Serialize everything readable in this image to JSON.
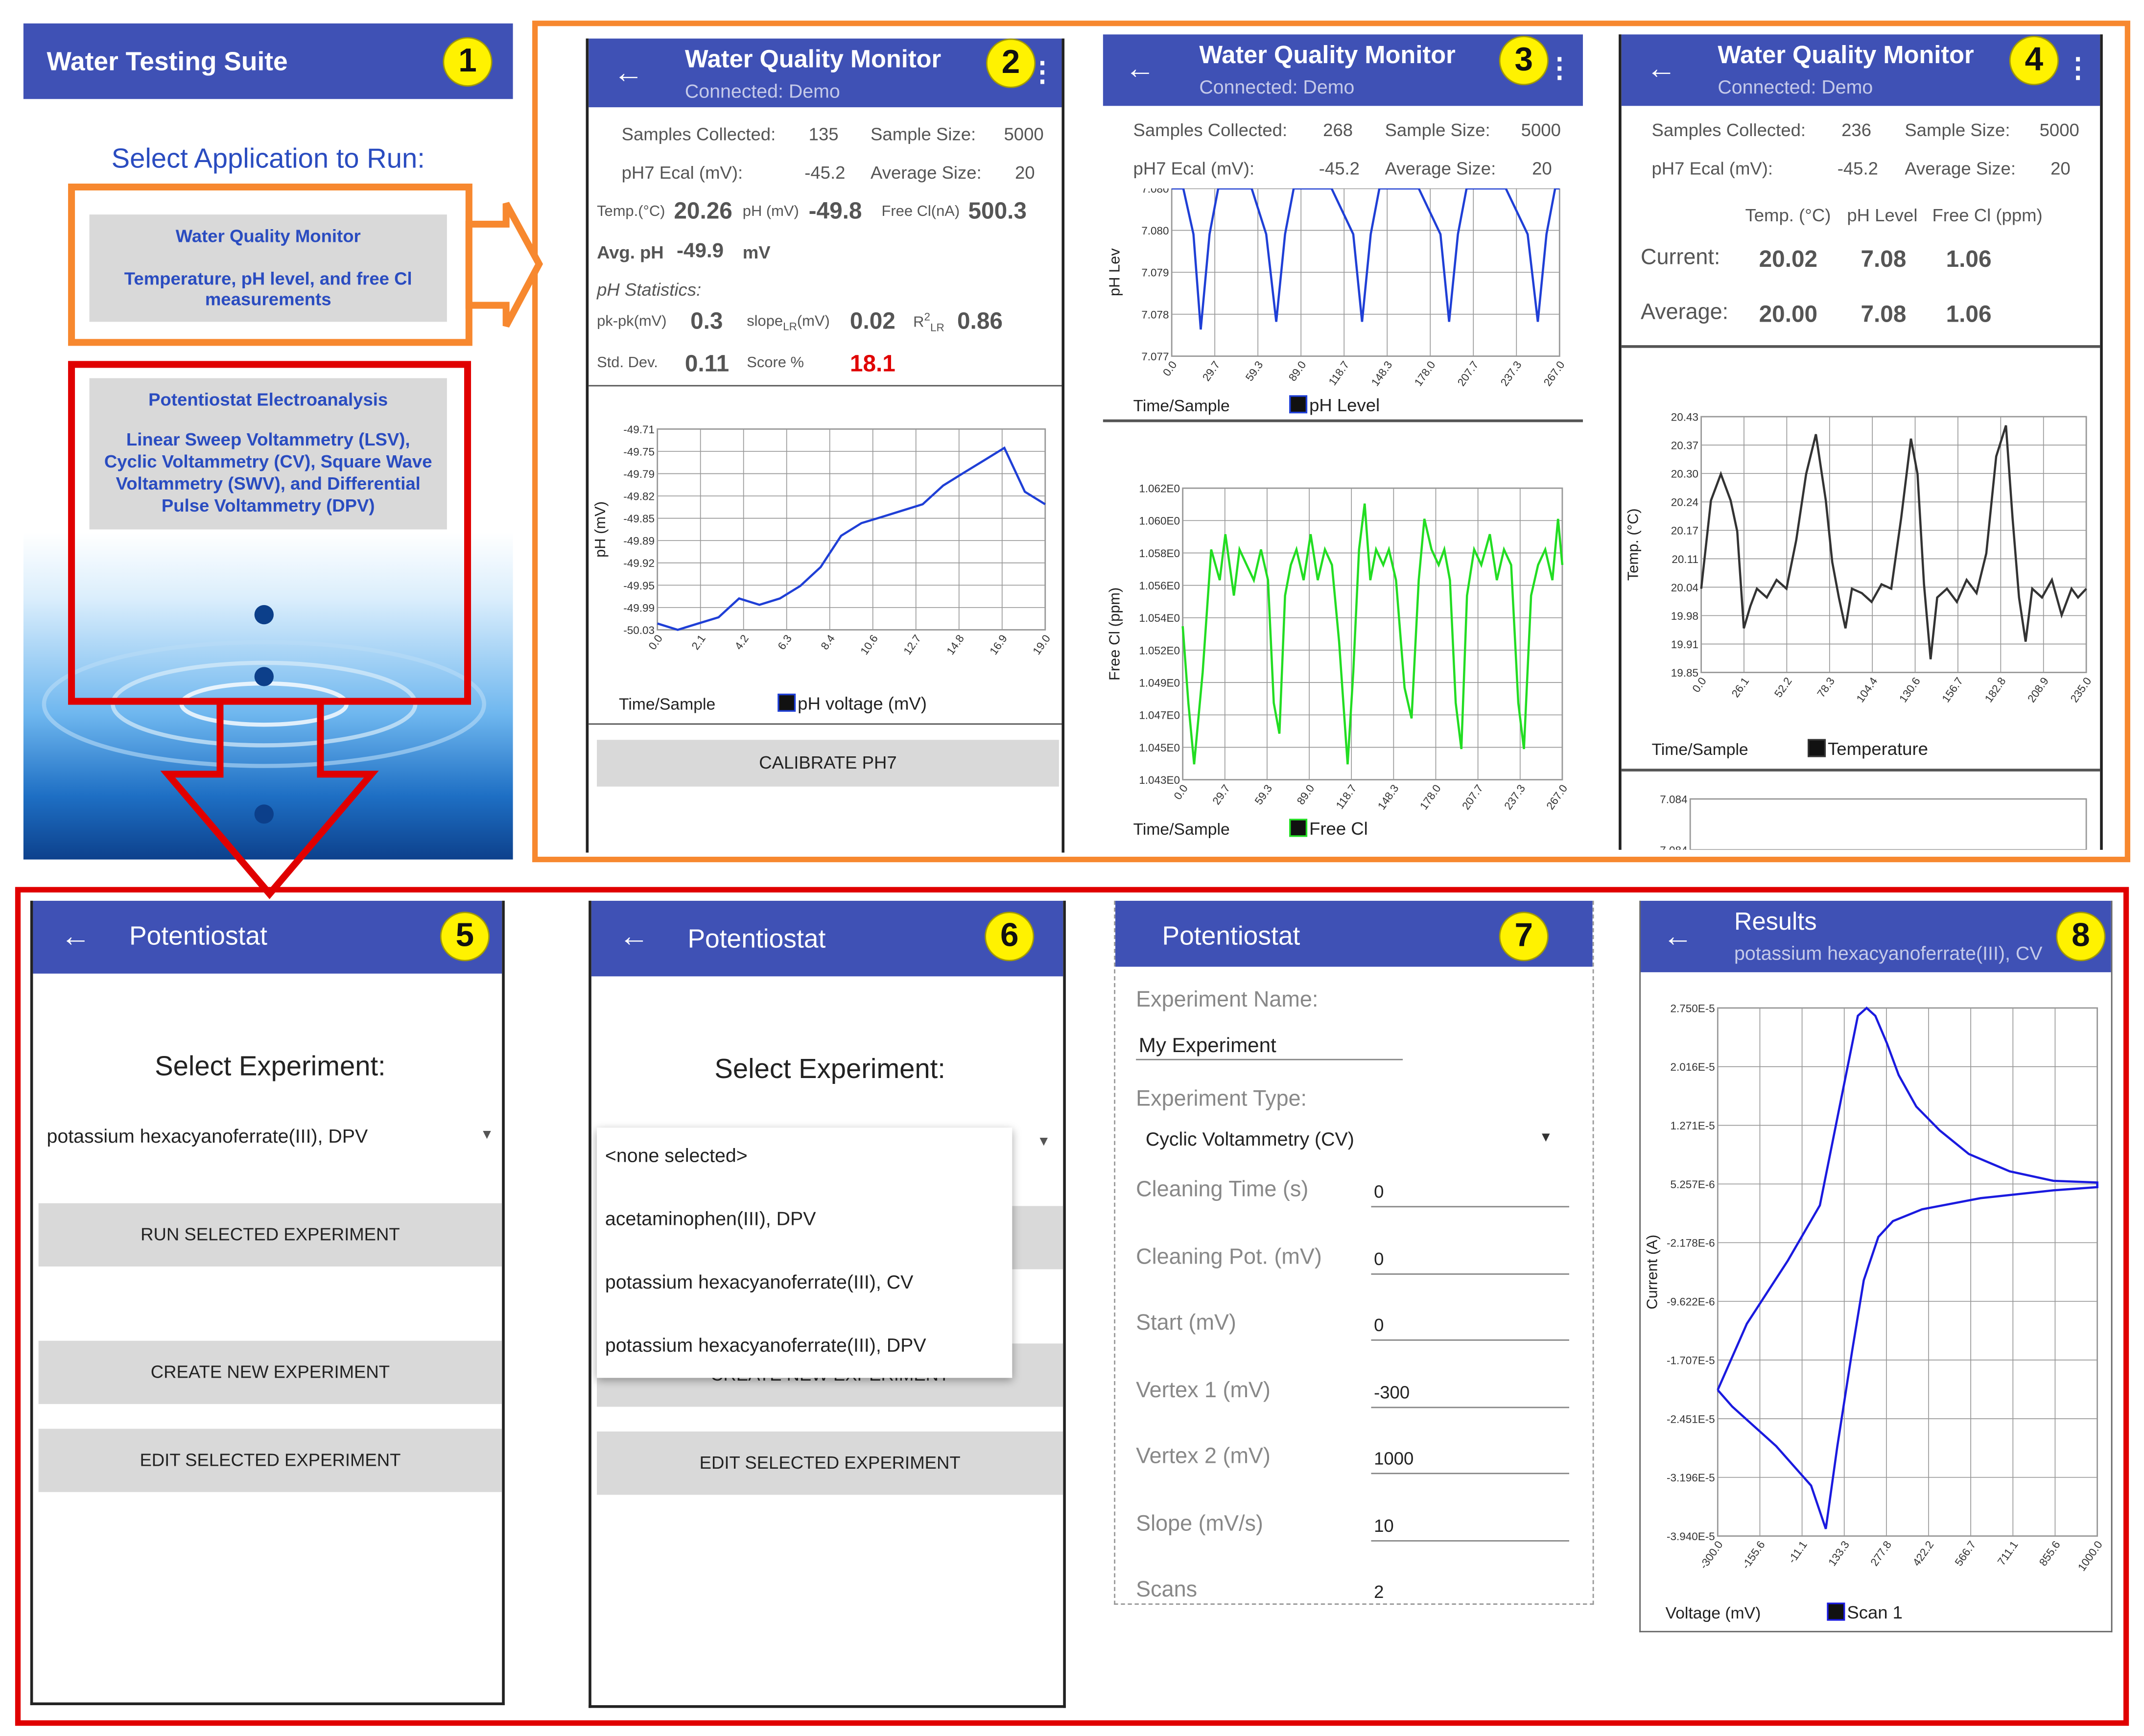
{
  "screen1": {
    "number": "1",
    "title": "Water Testing Suite",
    "heading": "Select Application to Run:",
    "app1_title": "Water Quality Monitor",
    "app1_desc": "Temperature, pH level, and free Cl measurements",
    "app2_title": "Potentiostat Electroanalysis",
    "app2_desc": "Linear Sweep Voltammetry (LSV), Cyclic Voltammetry (CV), Square Wave Voltammetry (SWV), and Differential Pulse Voltammetry (DPV)"
  },
  "screen2": {
    "number": "2",
    "title": "Water Quality Monitor",
    "subtitle": "Connected: Demo",
    "samples_label": "Samples Collected:",
    "samples_value": "135",
    "size_label": "Sample Size:",
    "size_value": "5000",
    "ecal_label": "pH7 Ecal (mV):",
    "ecal_value": "-45.2",
    "avg_label": "Average Size:",
    "avg_value": "20",
    "temp_label": "Temp.(°C)",
    "temp_value": "20.26",
    "phmv_label": "pH (mV)",
    "phmv_value": "-49.8",
    "freecl_label": "Free Cl(nA)",
    "freecl_value": "500.3",
    "avgph_label": "Avg. pH",
    "avgph_value": "-49.9",
    "avgph_unit": "mV",
    "stats_label": "pH Statistics:",
    "pkpk_label": "pk-pk(mV)",
    "pkpk_value": "0.3",
    "slope_label": "slope",
    "slope_sub": "LR",
    "slope_unit": "(mV)",
    "slope_value": "0.02",
    "r2_label": "R",
    "r2_sup": "2",
    "r2_sub": "LR",
    "r2_value": "0.86",
    "std_label": "Std. Dev.",
    "std_value": "0.11",
    "score_label": "Score %",
    "score_value": "18.1",
    "calibrate_label": "CALIBRATE PH7"
  },
  "screen3": {
    "number": "3",
    "title": "Water Quality Monitor",
    "subtitle": "Connected: Demo",
    "samples_label": "Samples Collected:",
    "samples_value": "268",
    "size_label": "Sample Size:",
    "size_value": "5000",
    "ecal_label": "pH7 Ecal (mV):",
    "ecal_value": "-45.2",
    "avg_label": "Average Size:",
    "avg_value": "20"
  },
  "screen4": {
    "number": "4",
    "title": "Water Quality Monitor",
    "subtitle": "Connected: Demo",
    "samples_label": "Samples Collected:",
    "samples_value": "236",
    "size_label": "Sample Size:",
    "size_value": "5000",
    "ecal_label": "pH7 Ecal (mV):",
    "ecal_value": "-45.2",
    "avg_label": "Average Size:",
    "avg_value": "20"
  },
  "screen5": {
    "number": "5",
    "title": "Potentiostat",
    "heading": "Select Experiment:",
    "selected": "potassium hexacyanoferrate(III), DPV",
    "run_label": "RUN SELECTED EXPERIMENT",
    "create_label": "CREATE NEW EXPERIMENT",
    "edit_label": "EDIT SELECTED EXPERIMENT"
  },
  "screen6": {
    "number": "6",
    "title": "Potentiostat",
    "heading": "Select Experiment:",
    "options": [
      "<none selected>",
      "acetaminophen(III), DPV",
      "potassium hexacyanoferrate(III), CV",
      "potassium hexacyanoferrate(III), DPV"
    ],
    "create_label": "CREATE NEW EXPERIMENT",
    "edit_label": "EDIT SELECTED EXPERIMENT"
  },
  "screen7": {
    "number": "7",
    "title": "Potentiostat",
    "name_label": "Experiment Name:",
    "name_value": "My Experiment",
    "type_label": "Experiment Type:",
    "type_value": "Cyclic Voltammetry (CV)",
    "fields": [
      {
        "label": "Cleaning Time (s)",
        "value": "0"
      },
      {
        "label": "Cleaning Pot. (mV)",
        "value": "0"
      },
      {
        "label": "Start (mV)",
        "value": "0"
      },
      {
        "label": "Vertex 1 (mV)",
        "value": "-300"
      },
      {
        "label": "Vertex 2 (mV)",
        "value": "1000"
      },
      {
        "label": "Slope (mV/s)",
        "value": "10"
      },
      {
        "label": "Scans",
        "value": "2"
      }
    ]
  },
  "screen8": {
    "number": "8",
    "title": "Results",
    "subtitle": "potassium hexacyanoferrate(III), CV"
  },
  "chart_data": [
    {
      "id": "screen2-ph-voltage",
      "type": "line",
      "xlabel": "Time/Sample",
      "ylabel": "pH (mV)",
      "xticks": [
        "0.0",
        "2.1",
        "4.2",
        "6.3",
        "8.4",
        "10.6",
        "12.7",
        "14.8",
        "16.9",
        "19.0"
      ],
      "yticks": [
        "-49.71",
        "-49.75",
        "-49.79",
        "-49.82",
        "-49.85",
        "-49.89",
        "-49.92",
        "-49.95",
        "-49.99",
        "-50.03"
      ],
      "xlim": [
        0,
        19
      ],
      "ylim": [
        -50.03,
        -49.71
      ],
      "grid": true,
      "legend_position": "bottom",
      "series": [
        {
          "name": "pH voltage (mV)",
          "color": "#1f3fd6",
          "x": [
            0,
            1,
            2,
            3,
            4,
            5,
            6,
            7,
            8,
            9,
            10,
            11,
            12,
            13,
            14,
            15,
            16,
            17,
            18,
            19
          ],
          "y": [
            -50.02,
            -50.03,
            -50.02,
            -50.01,
            -49.98,
            -49.99,
            -49.98,
            -49.96,
            -49.93,
            -49.88,
            -49.86,
            -49.85,
            -49.84,
            -49.83,
            -49.8,
            -49.78,
            -49.76,
            -49.74,
            -49.81,
            -49.83
          ]
        }
      ]
    },
    {
      "id": "screen3-ph-level",
      "type": "line",
      "xlabel": "Time/Sample",
      "ylabel": "pH Lev",
      "xticks": [
        "0.0",
        "29.7",
        "59.3",
        "89.0",
        "118.7",
        "148.3",
        "178.0",
        "207.7",
        "237.3",
        "267.0"
      ],
      "yticks": [
        "7.080",
        "7.080",
        "7.079",
        "7.078",
        "7.077"
      ],
      "xlim": [
        0,
        267
      ],
      "ylim": [
        7.0768,
        7.0812
      ],
      "grid": true,
      "legend_position": "bottom",
      "series": [
        {
          "name": "pH Level",
          "color": "#1f3fd6",
          "x": [
            0,
            8,
            15,
            20,
            26,
            32,
            40,
            55,
            65,
            72,
            78,
            84,
            90,
            110,
            125,
            131,
            137,
            143,
            150,
            170,
            185,
            191,
            197,
            203,
            210,
            230,
            245,
            252,
            258,
            264,
            267
          ],
          "y": [
            7.0812,
            7.0812,
            7.08,
            7.0775,
            7.08,
            7.0812,
            7.0812,
            7.0812,
            7.08,
            7.0777,
            7.08,
            7.0812,
            7.0812,
            7.0812,
            7.08,
            7.0777,
            7.08,
            7.0812,
            7.0812,
            7.0812,
            7.08,
            7.0777,
            7.08,
            7.0812,
            7.0812,
            7.0812,
            7.08,
            7.0777,
            7.08,
            7.0812,
            7.0812
          ]
        }
      ]
    },
    {
      "id": "screen3-free-cl",
      "type": "line",
      "xlabel": "Time/Sample",
      "ylabel": "Free Cl (ppm)",
      "xticks": [
        "0.0",
        "29.7",
        "59.3",
        "89.0",
        "118.7",
        "148.3",
        "178.0",
        "207.7",
        "237.3",
        "267.0"
      ],
      "yticks": [
        "1.062E0",
        "1.060E0",
        "1.058E0",
        "1.056E0",
        "1.054E0",
        "1.052E0",
        "1.049E0",
        "1.047E0",
        "1.045E0",
        "1.043E0"
      ],
      "xlim": [
        0,
        267
      ],
      "ylim": [
        1.043,
        1.062
      ],
      "grid": true,
      "legend_position": "bottom",
      "series": [
        {
          "name": "Free Cl",
          "color": "#22dd22",
          "x": [
            0,
            4,
            8,
            14,
            20,
            26,
            30,
            36,
            40,
            45,
            50,
            55,
            60,
            64,
            68,
            72,
            76,
            80,
            85,
            90,
            95,
            100,
            105,
            110,
            116,
            120,
            124,
            128,
            132,
            136,
            141,
            145,
            150,
            156,
            161,
            166,
            170,
            175,
            180,
            184,
            188,
            192,
            196,
            200,
            205,
            210,
            216,
            221,
            226,
            231,
            236,
            240,
            245,
            250,
            255,
            260,
            264,
            267
          ],
          "y": [
            1.053,
            1.048,
            1.044,
            1.05,
            1.058,
            1.056,
            1.059,
            1.055,
            1.058,
            1.057,
            1.056,
            1.058,
            1.056,
            1.048,
            1.046,
            1.055,
            1.057,
            1.058,
            1.056,
            1.059,
            1.056,
            1.058,
            1.057,
            1.052,
            1.044,
            1.05,
            1.058,
            1.061,
            1.056,
            1.058,
            1.057,
            1.058,
            1.056,
            1.049,
            1.047,
            1.056,
            1.06,
            1.058,
            1.057,
            1.058,
            1.056,
            1.048,
            1.045,
            1.055,
            1.058,
            1.057,
            1.059,
            1.056,
            1.058,
            1.057,
            1.048,
            1.045,
            1.055,
            1.057,
            1.058,
            1.056,
            1.06,
            1.057
          ]
        }
      ]
    },
    {
      "id": "screen4-temperature",
      "type": "line",
      "xlabel": "Time/Sample",
      "ylabel": "Temp. (°C)",
      "xticks": [
        "0.0",
        "26.1",
        "52.2",
        "78.3",
        "104.4",
        "130.6",
        "156.7",
        "182.8",
        "208.9",
        "235.0"
      ],
      "yticks": [
        "20.43",
        "20.37",
        "20.30",
        "20.24",
        "20.17",
        "20.11",
        "20.04",
        "19.98",
        "19.91",
        "19.85"
      ],
      "xlim": [
        0,
        235
      ],
      "ylim": [
        19.85,
        20.43
      ],
      "grid": true,
      "legend_position": "bottom",
      "series": [
        {
          "name": "Temperature",
          "color": "#333333",
          "x": [
            0,
            6,
            12,
            18,
            22,
            26,
            30,
            34,
            40,
            46,
            52,
            58,
            64,
            70,
            76,
            80,
            84,
            88,
            92,
            98,
            104,
            110,
            116,
            122,
            128,
            132,
            136,
            140,
            144,
            150,
            156,
            162,
            168,
            174,
            180,
            186,
            190,
            194,
            198,
            202,
            208,
            214,
            220,
            226,
            230,
            235
          ],
          "y": [
            20.04,
            20.24,
            20.3,
            20.24,
            20.17,
            19.95,
            20.0,
            20.04,
            20.02,
            20.06,
            20.04,
            20.15,
            20.3,
            20.39,
            20.24,
            20.1,
            20.02,
            19.95,
            20.04,
            20.03,
            20.01,
            20.05,
            20.04,
            20.2,
            20.38,
            20.3,
            20.05,
            19.88,
            20.02,
            20.04,
            20.01,
            20.06,
            20.03,
            20.12,
            20.34,
            20.41,
            20.2,
            20.02,
            19.92,
            20.04,
            20.02,
            20.06,
            19.98,
            20.04,
            20.02,
            20.04
          ]
        }
      ]
    },
    {
      "id": "screen4-table",
      "type": "table",
      "columns": [
        "Temp. (°C)",
        "pH Level",
        "Free Cl (ppm)"
      ],
      "rows": [
        {
          "label": "Current:",
          "values": [
            "20.02",
            "7.08",
            "1.06"
          ]
        },
        {
          "label": "Average:",
          "values": [
            "20.00",
            "7.08",
            "1.06"
          ]
        }
      ]
    },
    {
      "id": "screen4-ph-level-partial",
      "type": "line",
      "xlabel": "",
      "ylabel": "",
      "yticks": [
        "7.084",
        "7.084"
      ],
      "xlim": [
        0,
        235
      ],
      "ylim": [
        7.083,
        7.085
      ],
      "grid": true,
      "series": [
        {
          "name": "",
          "color": "#1f3fd6",
          "x": [],
          "y": []
        }
      ]
    },
    {
      "id": "screen8-cv",
      "type": "line",
      "xlabel": "Voltage (mV)",
      "ylabel": "Current (A)",
      "xticks": [
        "-300.0",
        "-155.6",
        "-11.1",
        "133.3",
        "277.8",
        "422.2",
        "566.7",
        "711.1",
        "855.6",
        "1000.0"
      ],
      "yticks": [
        "2.750E-5",
        "2.016E-5",
        "1.271E-5",
        "5.257E-6",
        "-2.178E-6",
        "-9.622E-6",
        "-1.707E-5",
        "-2.451E-5",
        "-3.196E-5",
        "-3.940E-5"
      ],
      "xlim": [
        -300,
        1000
      ],
      "ylim": [
        -3.94e-05,
        2.75e-05
      ],
      "grid": true,
      "legend_position": "bottom",
      "series": [
        {
          "name": "Scan 1",
          "color": "#1a1adf",
          "x": [
            -300,
            -200,
            -60,
            50,
            120,
            180,
            210,
            240,
            280,
            320,
            380,
            460,
            560,
            700,
            850,
            1000,
            1000,
            850,
            600,
            400,
            300,
            250,
            200,
            160,
            110,
            70,
            20,
            -100,
            -250,
            -300
          ],
          "y": [
            -2.09e-05,
            -1.25e-05,
            -4.5e-06,
            2.5e-06,
            1.55e-05,
            2.65e-05,
            2.75e-05,
            2.65e-05,
            2.3e-05,
            1.9e-05,
            1.5e-05,
            1.2e-05,
            9e-06,
            6.8e-06,
            5.6e-06,
            5.4e-06,
            4.8e-06,
            4.4e-06,
            3.4e-06,
            2e-06,
            5e-07,
            -1.5e-06,
            -7e-06,
            -1.6e-05,
            -2.8e-05,
            -3.85e-05,
            -3.3e-05,
            -2.8e-05,
            -2.3e-05,
            -2.09e-05
          ]
        }
      ]
    }
  ],
  "legend_labels": {
    "s2": "pH voltage (mV)",
    "s3a": "pH Level",
    "s3b": "Free Cl",
    "s4": "Temperature",
    "s8": "Scan 1"
  },
  "colors": {
    "appbar": "#3f51b5",
    "orange": "#f7882f",
    "red": "#e00000",
    "badge": "#fff200"
  }
}
